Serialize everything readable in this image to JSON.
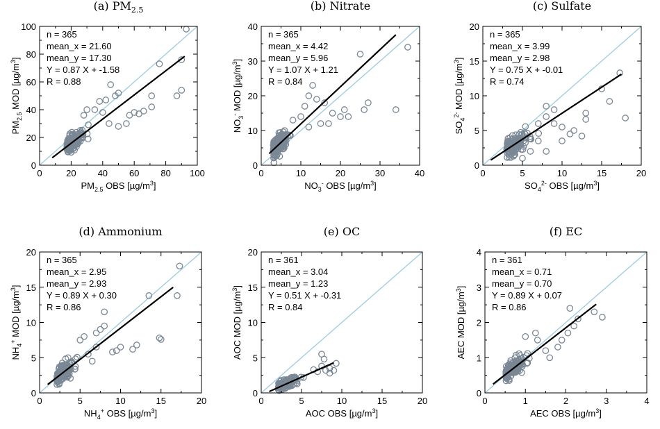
{
  "chart_data": [
    {
      "type": "scatter",
      "title": "(a) PM2.5",
      "title_main": "(a) PM",
      "title_sub": "2.5",
      "xlabel": "PM2.5 OBS [µg/m3]",
      "ylabel": "PM2.5 MOD [µg/m3]",
      "xlim": [
        0,
        100
      ],
      "ylim": [
        0,
        100
      ],
      "xticks": [
        0,
        20,
        40,
        60,
        80,
        100
      ],
      "yticks": [
        0,
        20,
        40,
        60,
        80,
        100
      ],
      "stats": [
        "n = 365",
        "mean_x = 21.60",
        "mean_y = 17.30",
        "Y = 0.87 X + -1.58",
        "R = 0.88"
      ],
      "fit": {
        "slope": 0.87,
        "intercept": -1.58,
        "x_range": [
          8,
          92
        ]
      },
      "outliers": [
        [
          93,
          98
        ],
        [
          90,
          76
        ],
        [
          76,
          73
        ],
        [
          90,
          54
        ],
        [
          87,
          50
        ],
        [
          71,
          50
        ],
        [
          71,
          42
        ],
        [
          66,
          39
        ],
        [
          63,
          37
        ],
        [
          60,
          38
        ],
        [
          57,
          36
        ],
        [
          50,
          52
        ],
        [
          48,
          50
        ],
        [
          45,
          58
        ],
        [
          42,
          47
        ],
        [
          38,
          46
        ],
        [
          35,
          40
        ],
        [
          44,
          30
        ],
        [
          50,
          28
        ],
        [
          55,
          30
        ],
        [
          40,
          38
        ],
        [
          30,
          40
        ],
        [
          28,
          36
        ]
      ],
      "cloud": {
        "mean_x": 21.6,
        "mean_y": 17.3,
        "sx": 8,
        "noise": 4,
        "count": 150
      },
      "series_color": "#7a8795",
      "oneone_color": "#9ccbe0"
    },
    {
      "type": "scatter",
      "title": "(b) Nitrate",
      "xlabel": "NO3- OBS [µg/m3]",
      "ylabel": "NO3- MOD [µg/m3]",
      "xlim": [
        0,
        40
      ],
      "ylim": [
        0,
        40
      ],
      "xticks": [
        0,
        10,
        20,
        30,
        40
      ],
      "yticks": [
        0,
        10,
        20,
        30,
        40
      ],
      "stats": [
        "n = 365",
        "mean_x = 4.42",
        "mean_y = 5.96",
        "Y = 1.07 X + 1.21",
        "R = 0.84"
      ],
      "fit": {
        "slope": 1.07,
        "intercept": 1.21,
        "x_range": [
          2,
          34
        ]
      },
      "outliers": [
        [
          37,
          34
        ],
        [
          25,
          32
        ],
        [
          34,
          16
        ],
        [
          27,
          18
        ],
        [
          26,
          16
        ],
        [
          21,
          16
        ],
        [
          20,
          14
        ],
        [
          18,
          15
        ],
        [
          17,
          12
        ],
        [
          15,
          12
        ],
        [
          13,
          23
        ],
        [
          14,
          19
        ],
        [
          12,
          20
        ],
        [
          11,
          17
        ],
        [
          16,
          18
        ],
        [
          22,
          14
        ],
        [
          12,
          11
        ],
        [
          10,
          14
        ],
        [
          8,
          13
        ]
      ],
      "cloud": {
        "mean_x": 4.42,
        "mean_y": 5.96,
        "sx": 2.5,
        "noise": 1.8,
        "count": 150
      }
    },
    {
      "type": "scatter",
      "title": "(c) Sulfate",
      "xlabel": "SO42- OBS [µg/m3]",
      "ylabel": "SO42- MOD [µg/m3]",
      "xlim": [
        0,
        20
      ],
      "ylim": [
        0,
        20
      ],
      "xticks": [
        0,
        5,
        10,
        15,
        20
      ],
      "yticks": [
        0,
        5,
        10,
        15,
        20
      ],
      "stats": [
        "n = 365",
        "mean_x = 3.99",
        "mean_y = 2.98",
        "Y = 0.75 X + -0.01",
        "R = 0.74"
      ],
      "fit": {
        "slope": 0.75,
        "intercept": -0.01,
        "x_range": [
          1,
          17.5
        ]
      },
      "outliers": [
        [
          17.3,
          13.3
        ],
        [
          15,
          11
        ],
        [
          16,
          9.2
        ],
        [
          18,
          6.8
        ],
        [
          13,
          7.5
        ],
        [
          13,
          6.6
        ],
        [
          12.5,
          4.2
        ],
        [
          11.5,
          5
        ],
        [
          11,
          4.5
        ],
        [
          10,
          3.5
        ],
        [
          9,
          8
        ],
        [
          10,
          5.5
        ],
        [
          9,
          6
        ],
        [
          8,
          8.5
        ],
        [
          8,
          7
        ],
        [
          7,
          6
        ],
        [
          7,
          3.5
        ],
        [
          8,
          2
        ],
        [
          6,
          2
        ],
        [
          5,
          1
        ]
      ],
      "cloud": {
        "mean_x": 3.99,
        "mean_y": 2.98,
        "sx": 1.8,
        "noise": 1,
        "count": 150
      }
    },
    {
      "type": "scatter",
      "title": "(d) Ammonium",
      "xlabel": "NH4+ OBS [µg/m3]",
      "ylabel": "NH4+ MOD [µg/m3]",
      "xlim": [
        0,
        20
      ],
      "ylim": [
        0,
        20
      ],
      "xticks": [
        0,
        5,
        10,
        15,
        20
      ],
      "yticks": [
        0,
        5,
        10,
        15,
        20
      ],
      "stats": [
        "n = 365",
        "mean_x = 2.95",
        "mean_y = 2.93",
        "Y = 0.89 X + 0.30",
        "R = 0.86"
      ],
      "fit": {
        "slope": 0.89,
        "intercept": 0.3,
        "x_range": [
          1,
          16.5
        ]
      },
      "outliers": [
        [
          17.3,
          18
        ],
        [
          17,
          13.8
        ],
        [
          13.5,
          13.8
        ],
        [
          14.8,
          7.8
        ],
        [
          15,
          7.6
        ],
        [
          12,
          6.8
        ],
        [
          11.5,
          6.2
        ],
        [
          10,
          6.5
        ],
        [
          9.5,
          6
        ],
        [
          8,
          11.5
        ],
        [
          8,
          9.5
        ],
        [
          7.5,
          9
        ],
        [
          7,
          8.5
        ],
        [
          7,
          6.5
        ],
        [
          6.5,
          4.5
        ],
        [
          6,
          5.5
        ],
        [
          5,
          7.5
        ],
        [
          5.5,
          8
        ],
        [
          9,
          5.8
        ]
      ],
      "cloud": {
        "mean_x": 2.95,
        "mean_y": 2.93,
        "sx": 1.5,
        "noise": 0.8,
        "count": 150
      }
    },
    {
      "type": "scatter",
      "title": "(e) OC",
      "xlabel": "AOC OBS [µg/m3]",
      "ylabel": "AOC MOD [µg/m3]",
      "xlim": [
        0,
        20
      ],
      "ylim": [
        0,
        20
      ],
      "xticks": [
        0,
        5,
        10,
        15,
        20
      ],
      "yticks": [
        0,
        5,
        10,
        15,
        20
      ],
      "stats": [
        "n = 361",
        "mean_x = 3.04",
        "mean_y = 1.23",
        "Y = 0.51 X + -0.31",
        "R = 0.84"
      ],
      "fit": {
        "slope": 0.51,
        "intercept": -0.31,
        "x_range": [
          1,
          9
        ]
      },
      "outliers": [
        [
          9.3,
          4.2
        ],
        [
          8.5,
          3.5
        ],
        [
          8,
          3.2
        ],
        [
          7.5,
          3.8
        ],
        [
          7.5,
          5.5
        ],
        [
          7.8,
          4.8
        ],
        [
          7,
          3
        ],
        [
          6.5,
          3.3
        ],
        [
          9,
          3.2
        ],
        [
          8.5,
          2.8
        ]
      ],
      "cloud": {
        "mean_x": 3.04,
        "mean_y": 1.23,
        "sx": 1.7,
        "noise": 0.45,
        "count": 150
      }
    },
    {
      "type": "scatter",
      "title": "(f) EC",
      "xlabel": "AEC OBS [µg/m3]",
      "ylabel": "AEC MOD [µg/m3]",
      "xlim": [
        0,
        4
      ],
      "ylim": [
        0,
        4
      ],
      "xticks": [
        0,
        1,
        2,
        3,
        4
      ],
      "yticks": [
        0,
        1,
        2,
        3,
        4
      ],
      "stats": [
        "n = 361",
        "mean_x = 0.71",
        "mean_y = 0.70",
        "Y = 0.89 X + 0.07",
        "R = 0.86"
      ],
      "fit": {
        "slope": 0.89,
        "intercept": 0.07,
        "x_range": [
          0.2,
          2.75
        ]
      },
      "outliers": [
        [
          2.9,
          2.15
        ],
        [
          2.7,
          2.3
        ],
        [
          2.3,
          2.1
        ],
        [
          2.2,
          1.9
        ],
        [
          2.1,
          2.4
        ],
        [
          2.05,
          1.7
        ],
        [
          1.9,
          1.5
        ],
        [
          1.8,
          1.3
        ],
        [
          1.5,
          1.2
        ],
        [
          1.6,
          1.0
        ],
        [
          1.3,
          1.5
        ],
        [
          1.25,
          1.7
        ],
        [
          1.0,
          1.6
        ],
        [
          0.6,
          0.35
        ]
      ],
      "cloud": {
        "mean_x": 0.71,
        "mean_y": 0.7,
        "sx": 0.35,
        "noise": 0.15,
        "count": 150
      }
    }
  ]
}
